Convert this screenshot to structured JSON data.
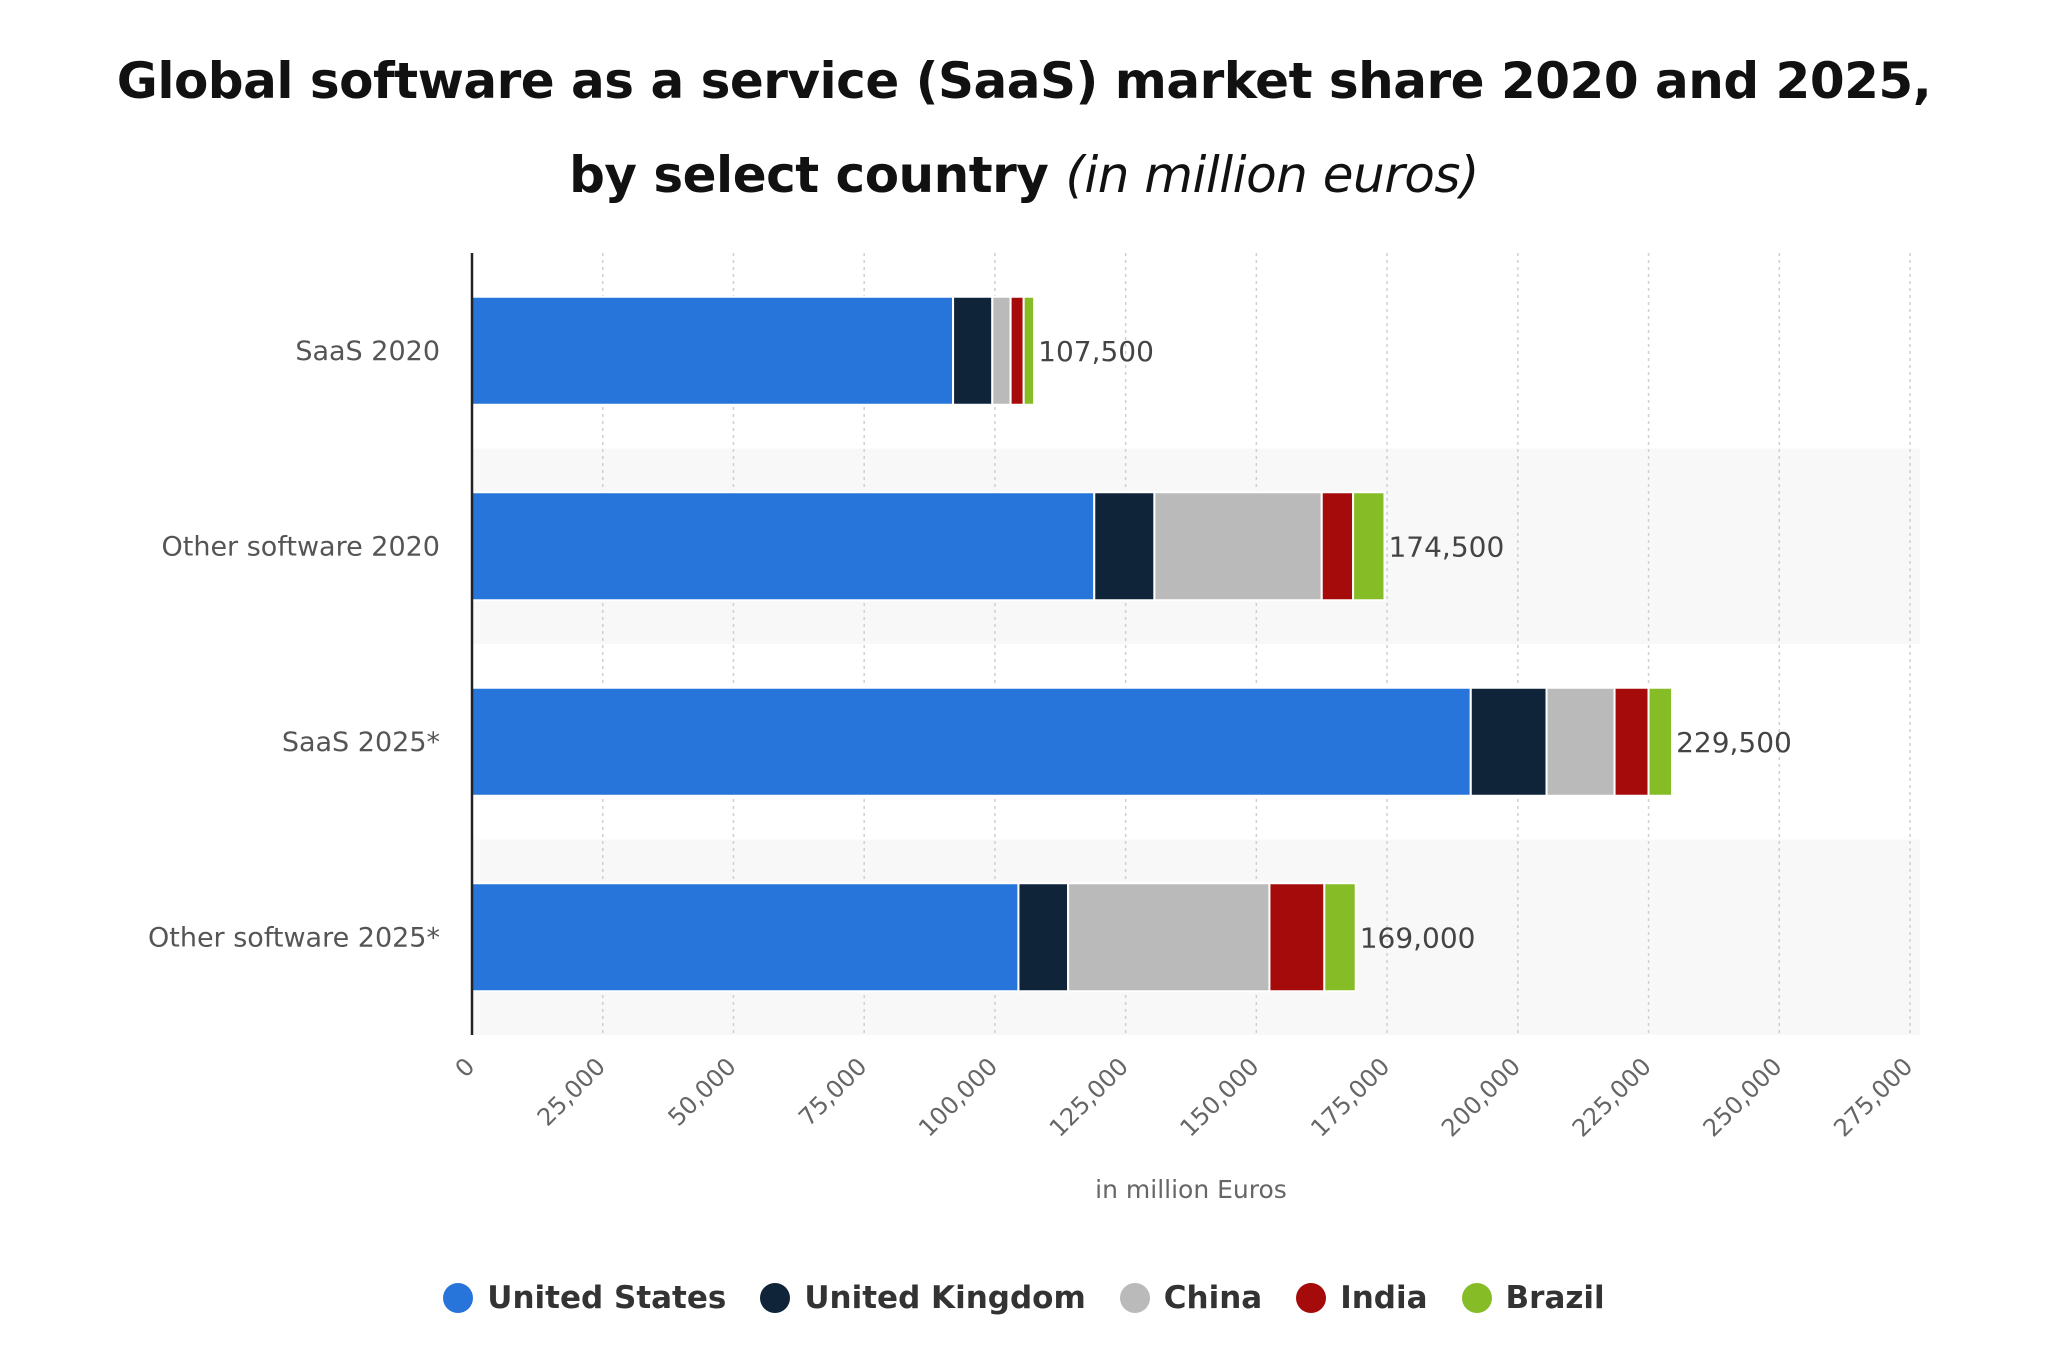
{
  "title": {
    "line1": "Global software as a service (SaaS) market share 2020 and 2025,",
    "line2_bold": "by select country",
    "line2_italic": "(in million euros)"
  },
  "chart_data": {
    "type": "bar",
    "orientation": "horizontal",
    "stacked": true,
    "categories": [
      "SaaS 2020",
      "Other software 2020",
      "SaaS 2025*",
      "Other software 2025*"
    ],
    "series": [
      {
        "name": "United States",
        "color": "#2775db",
        "values": [
          92000,
          119000,
          191000,
          104500
        ]
      },
      {
        "name": "United Kingdom",
        "color": "#0f2339",
        "values": [
          7500,
          11500,
          14500,
          9500
        ]
      },
      {
        "name": "China",
        "color": "#bababa",
        "values": [
          3500,
          32000,
          13000,
          38500
        ]
      },
      {
        "name": "India",
        "color": "#a50b0b",
        "values": [
          2500,
          6000,
          6500,
          10500
        ]
      },
      {
        "name": "Brazil",
        "color": "#86bc25",
        "values": [
          2000,
          6000,
          4500,
          6000
        ]
      }
    ],
    "totals": [
      "107,500",
      "174,500",
      "229,500",
      "169,000"
    ],
    "xlabel": "in million Euros",
    "xlim": [
      0,
      275000
    ],
    "xticks": [
      "0",
      "25,000",
      "50,000",
      "75,000",
      "100,000",
      "125,000",
      "150,000",
      "175,000",
      "200,000",
      "225,000",
      "250,000",
      "275,000"
    ],
    "grid": "vertical dotted",
    "legend_position": "bottom"
  }
}
